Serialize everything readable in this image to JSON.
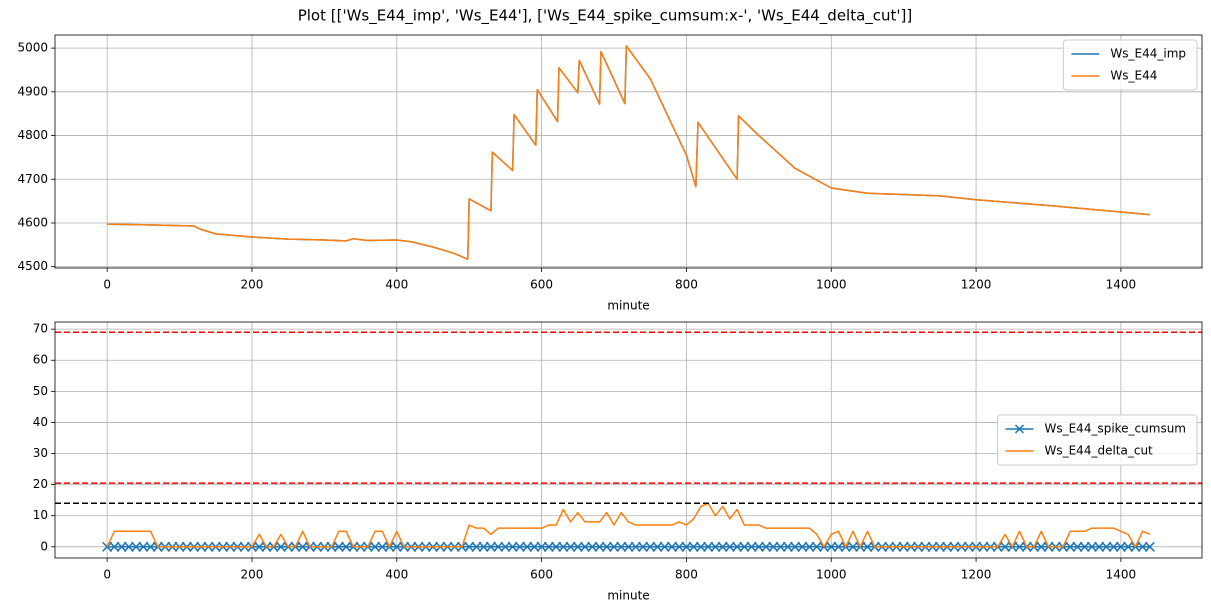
{
  "chart_data": [
    {
      "type": "line",
      "title": "Plot [['Ws_E44_imp', 'Ws_E44'], ['Ws_E44_spike_cumsum:x-', 'Ws_E44_delta_cut']]",
      "xlabel": "minute",
      "x": [
        0,
        50,
        100,
        120,
        130,
        150,
        200,
        250,
        300,
        330,
        340,
        360,
        400,
        420,
        450,
        480,
        498,
        500,
        530,
        532,
        560,
        562,
        592,
        594,
        622,
        624,
        650,
        652,
        680,
        682,
        715,
        717,
        750,
        800,
        813,
        816,
        870,
        872,
        900,
        950,
        1000,
        1050,
        1100,
        1150,
        1200,
        1300,
        1400,
        1440
      ],
      "series": [
        {
          "name": "Ws_E44_imp",
          "color": "#1f77b4",
          "values": [
            4597,
            4596,
            4594,
            4593,
            4585,
            4575,
            4568,
            4563,
            4561,
            4559,
            4564,
            4560,
            4561,
            4557,
            4545,
            4530,
            4517,
            4655,
            4628,
            4762,
            4720,
            4848,
            4778,
            4905,
            4832,
            4955,
            4898,
            4972,
            4872,
            4992,
            4873,
            5005,
            4930,
            4755,
            4683,
            4830,
            4700,
            4845,
            4800,
            4725,
            4680,
            4668,
            4665,
            4662,
            4653,
            4640,
            4625,
            4619
          ]
        },
        {
          "name": "Ws_E44",
          "color": "#ff7f0e",
          "values": [
            4597,
            4596,
            4594,
            4593,
            4585,
            4575,
            4568,
            4563,
            4561,
            4559,
            4564,
            4560,
            4561,
            4557,
            4545,
            4530,
            4517,
            4655,
            4628,
            4762,
            4720,
            4848,
            4778,
            4905,
            4832,
            4955,
            4898,
            4972,
            4872,
            4992,
            4873,
            5005,
            4930,
            4755,
            4683,
            4830,
            4700,
            4845,
            4800,
            4725,
            4680,
            4668,
            4665,
            4662,
            4653,
            4640,
            4625,
            4619
          ]
        }
      ],
      "xlim": [
        -72,
        1512
      ],
      "ylim": [
        4497,
        5030
      ],
      "xticks": [
        0,
        200,
        400,
        600,
        800,
        1000,
        1200,
        1400
      ],
      "yticks": [
        4500,
        4600,
        4700,
        4800,
        4900,
        5000
      ],
      "grid": true,
      "legend": "upper right"
    },
    {
      "type": "line",
      "xlabel": "minute",
      "x": [
        0,
        10,
        20,
        30,
        40,
        50,
        60,
        70,
        80,
        90,
        100,
        110,
        120,
        130,
        140,
        150,
        160,
        170,
        180,
        190,
        200,
        210,
        220,
        230,
        240,
        250,
        260,
        270,
        280,
        290,
        300,
        310,
        320,
        330,
        340,
        350,
        360,
        370,
        380,
        390,
        400,
        410,
        420,
        430,
        440,
        450,
        460,
        470,
        480,
        490,
        500,
        510,
        520,
        530,
        540,
        550,
        560,
        570,
        580,
        590,
        600,
        610,
        620,
        630,
        640,
        650,
        660,
        670,
        680,
        690,
        700,
        710,
        720,
        730,
        740,
        750,
        760,
        770,
        780,
        790,
        800,
        810,
        820,
        830,
        840,
        850,
        860,
        870,
        880,
        890,
        900,
        910,
        920,
        930,
        940,
        950,
        960,
        970,
        980,
        990,
        1000,
        1010,
        1020,
        1030,
        1040,
        1050,
        1060,
        1070,
        1080,
        1090,
        1100,
        1110,
        1120,
        1130,
        1140,
        1150,
        1160,
        1170,
        1180,
        1190,
        1200,
        1210,
        1220,
        1230,
        1240,
        1250,
        1260,
        1270,
        1280,
        1290,
        1300,
        1310,
        1320,
        1330,
        1340,
        1350,
        1360,
        1370,
        1380,
        1390,
        1400,
        1410,
        1420,
        1430,
        1440
      ],
      "series": [
        {
          "name": "Ws_E44_spike_cumsum",
          "color": "#1f77b4",
          "marker": "x",
          "values": [
            0,
            0,
            0,
            0,
            0,
            0,
            0,
            0,
            0,
            0,
            0,
            0,
            0,
            0,
            0,
            0,
            0,
            0,
            0,
            0,
            0,
            0,
            0,
            0,
            0,
            0,
            0,
            0,
            0,
            0,
            0,
            0,
            0,
            0,
            0,
            0,
            0,
            0,
            0,
            0,
            0,
            0,
            0,
            0,
            0,
            0,
            0,
            0,
            0,
            0,
            0,
            0,
            0,
            0,
            0,
            0,
            0,
            0,
            0,
            0,
            0,
            0,
            0,
            0,
            0,
            0,
            0,
            0,
            0,
            0,
            0,
            0,
            0,
            0,
            0,
            0,
            0,
            0,
            0,
            0,
            0,
            0,
            0,
            0,
            0,
            0,
            0,
            0,
            0,
            0,
            0,
            0,
            0,
            0,
            0,
            0,
            0,
            0,
            0,
            0,
            0,
            0,
            0,
            0,
            0,
            0,
            0,
            0,
            0,
            0,
            0,
            0,
            0,
            0,
            0,
            0,
            0,
            0,
            0,
            0,
            0,
            0,
            0,
            0,
            0,
            0,
            0,
            0,
            0,
            0,
            0,
            0,
            0,
            0,
            0,
            0,
            0,
            0,
            0,
            0,
            0,
            0,
            0,
            0,
            0
          ]
        },
        {
          "name": "Ws_E44_delta_cut",
          "color": "#ff7f0e",
          "values": [
            0,
            5,
            5,
            5,
            5,
            5,
            5,
            0,
            0,
            0,
            0,
            0,
            0,
            0,
            0,
            0,
            0,
            0,
            0,
            0,
            0,
            4,
            0,
            0,
            4,
            0,
            0,
            5,
            0,
            0,
            0,
            0,
            5,
            5,
            0,
            0,
            0,
            5,
            5,
            0,
            5,
            0,
            0,
            0,
            0,
            0,
            0,
            0,
            0,
            0,
            7,
            6,
            6,
            4,
            6,
            6,
            6,
            6,
            6,
            6,
            6,
            7,
            7,
            12,
            8,
            11,
            8,
            8,
            8,
            11,
            7,
            11,
            8,
            7,
            7,
            7,
            7,
            7,
            7,
            8,
            7,
            9,
            13,
            14,
            10,
            13,
            9,
            12,
            7,
            7,
            7,
            6,
            6,
            6,
            6,
            6,
            6,
            6,
            4,
            0,
            4,
            5,
            0,
            5,
            0,
            5,
            0,
            0,
            0,
            0,
            0,
            0,
            0,
            0,
            0,
            0,
            0,
            0,
            0,
            0,
            0,
            0,
            0,
            0,
            4,
            0,
            5,
            0,
            0,
            5,
            0,
            0,
            0,
            5,
            5,
            5,
            6,
            6,
            6,
            6,
            5,
            4,
            0,
            5,
            4
          ]
        }
      ],
      "hlines": [
        {
          "value": 69,
          "color": "#ff0000"
        },
        {
          "value": 20.5,
          "color": "#ff0000"
        },
        {
          "value": 14,
          "color": "#000000"
        }
      ],
      "xlim": [
        -72,
        1512
      ],
      "ylim": [
        -3.6,
        72.3
      ],
      "xticks": [
        0,
        200,
        400,
        600,
        800,
        1000,
        1200,
        1400
      ],
      "yticks": [
        0,
        10,
        20,
        30,
        40,
        50,
        60,
        70
      ],
      "grid": true,
      "legend": "center right"
    }
  ]
}
